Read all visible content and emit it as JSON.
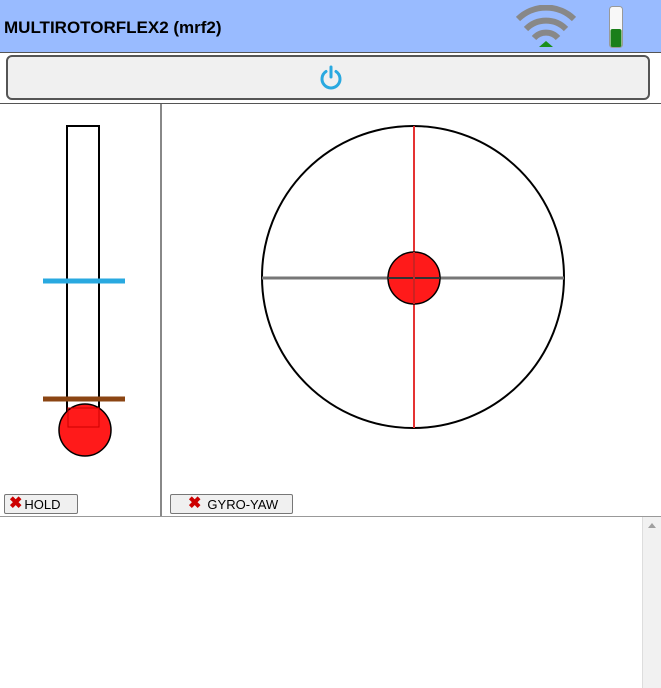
{
  "header": {
    "title": "MULTIROTORFLEX2 (mrf2)",
    "wifi_icon": "wifi-signal-icon",
    "battery_icon": "battery-icon",
    "battery_level": 0.45,
    "battery_color": "#1a7f1a"
  },
  "power_bar": {
    "icon": "power-icon",
    "icon_color": "#29a9e0"
  },
  "throttle": {
    "setpoint_color": "#29a9e0",
    "limit_color": "#8b4513",
    "knob_color": "#ff1a1a",
    "hold_label": "HOLD"
  },
  "joystick": {
    "stick_x": 0.0,
    "stick_y": 0.0,
    "knob_color": "#ff1a1a",
    "vertical_axis_color": "#e53333",
    "horizontal_axis_color": "#777777",
    "gyro_label": "GYRO-YAW"
  },
  "icons": {
    "hold_x": "close-x-icon",
    "gyro_x": "close-x-icon",
    "scroll_up": "scroll-up-arrow-icon"
  }
}
